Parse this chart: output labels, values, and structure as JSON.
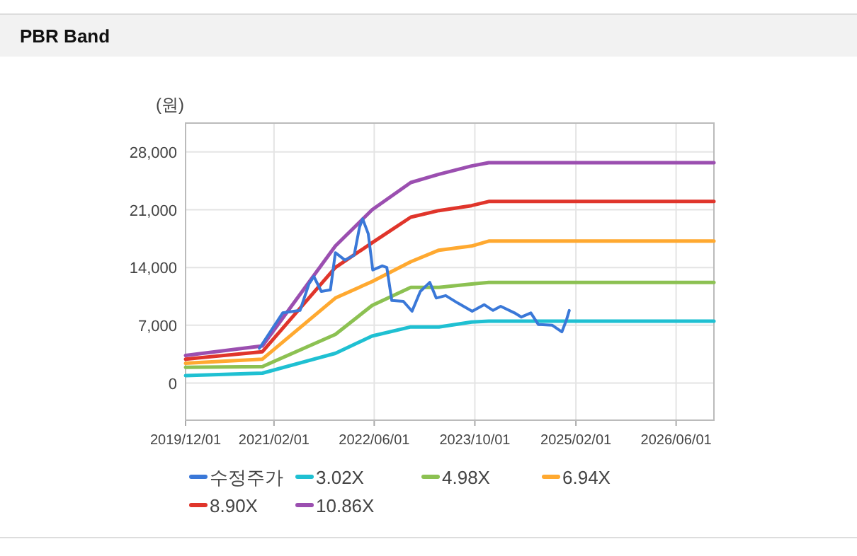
{
  "chart_data": {
    "type": "line",
    "title": "PBR Band",
    "ylabel": "(원)",
    "xlim": [
      "2019-12-01",
      "2026-12-01"
    ],
    "xticks": [
      {
        "value": "2019-12-01",
        "label": "2019/12/01"
      },
      {
        "value": "2021-02-01",
        "label": "2021/02/01"
      },
      {
        "value": "2022-06-01",
        "label": "2022/06/01"
      },
      {
        "value": "2023-10-01",
        "label": "2023/10/01"
      },
      {
        "value": "2025-02-01",
        "label": "2025/02/01"
      },
      {
        "value": "2026-06-01",
        "label": "2026/06/01"
      }
    ],
    "ylim": [
      -4500,
      31500
    ],
    "yticks": [
      {
        "value": 0,
        "label": "0"
      },
      {
        "value": 7000,
        "label": "7,000"
      },
      {
        "value": 14000,
        "label": "14,000"
      },
      {
        "value": 21000,
        "label": "21,000"
      },
      {
        "value": 28000,
        "label": "28,000"
      }
    ],
    "grid": true,
    "legend": "bottom",
    "marker": "none",
    "line_style": "solid",
    "series": [
      {
        "name": "수정주가",
        "color": "#3a78d8",
        "x": [
          "2020-11-22",
          "2021-03-15",
          "2021-06-07",
          "2021-07-20",
          "2021-08-13",
          "2021-09-18",
          "2021-11-01",
          "2021-11-25",
          "2022-01-10",
          "2022-02-24",
          "2022-03-22",
          "2022-04-06",
          "2022-05-03",
          "2022-05-25",
          "2022-07-10",
          "2022-08-01",
          "2022-08-25",
          "2022-10-20",
          "2022-12-01",
          "2023-01-10",
          "2023-02-25",
          "2023-03-28",
          "2023-05-13",
          "2023-07-10",
          "2023-09-18",
          "2023-11-15",
          "2023-12-28",
          "2024-02-03",
          "2024-04-10",
          "2024-05-13",
          "2024-06-28",
          "2024-08-03",
          "2024-10-10",
          "2024-11-25",
          "2024-12-18",
          "2024-12-31"
        ],
        "values": [
          4200,
          8500,
          8800,
          12000,
          12900,
          11100,
          11300,
          15800,
          14900,
          15500,
          18900,
          19900,
          18100,
          13700,
          14200,
          14000,
          10000,
          9900,
          8700,
          11100,
          12200,
          10300,
          10600,
          9700,
          8700,
          9500,
          8800,
          9300,
          8500,
          8000,
          8500,
          7100,
          7000,
          6200,
          7700,
          8800
        ]
      },
      {
        "name": "3.02X",
        "color": "#1fc0d2",
        "x": [
          "2019-12-01",
          "2020-12-07",
          "2021-11-25",
          "2022-05-22",
          "2022-11-25",
          "2023-04-10",
          "2023-09-15",
          "2023-12-07",
          "2026-12-01"
        ],
        "values": [
          900,
          1200,
          3600,
          5700,
          6800,
          6800,
          7400,
          7500,
          7500
        ]
      },
      {
        "name": "4.98X",
        "color": "#8cc152",
        "x": [
          "2019-12-01",
          "2020-12-07",
          "2021-11-25",
          "2022-05-22",
          "2022-11-25",
          "2023-04-10",
          "2023-09-15",
          "2023-12-07",
          "2026-12-01"
        ],
        "values": [
          1900,
          2000,
          5900,
          9400,
          11600,
          11600,
          12000,
          12200,
          12200
        ]
      },
      {
        "name": "6.94X",
        "color": "#ffa930",
        "x": [
          "2019-12-01",
          "2020-12-07",
          "2021-11-25",
          "2022-05-22",
          "2022-11-25",
          "2023-04-10",
          "2023-09-15",
          "2023-12-07",
          "2026-12-01"
        ],
        "values": [
          2400,
          2900,
          10300,
          12300,
          14700,
          16100,
          16600,
          17200,
          17200
        ]
      },
      {
        "name": "8.90X",
        "color": "#e0352b",
        "x": [
          "2019-12-01",
          "2020-12-07",
          "2021-11-25",
          "2022-05-22",
          "2022-11-25",
          "2023-04-10",
          "2023-09-15",
          "2023-12-07",
          "2026-12-01"
        ],
        "values": [
          2900,
          3800,
          14000,
          17000,
          20100,
          20900,
          21500,
          22000,
          22000
        ]
      },
      {
        "name": "10.86X",
        "color": "#9b4fb0",
        "x": [
          "2019-12-01",
          "2020-12-07",
          "2021-11-25",
          "2022-05-22",
          "2022-11-25",
          "2023-04-10",
          "2023-09-15",
          "2023-12-07",
          "2026-12-01"
        ],
        "values": [
          3350,
          4500,
          16600,
          21000,
          24300,
          25300,
          26300,
          26700,
          26700
        ]
      }
    ]
  }
}
